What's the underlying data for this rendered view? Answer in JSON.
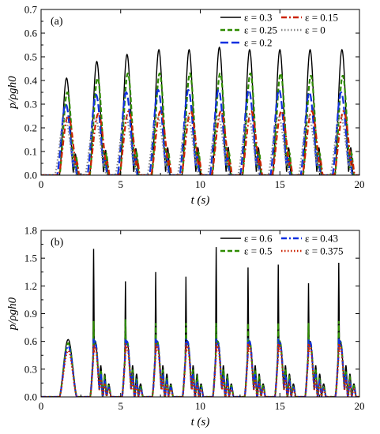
{
  "chart_data": [
    {
      "panel": "(a)",
      "type": "line",
      "xlabel": "t (s)",
      "ylabel": "p/ρgh0",
      "xlim": [
        0,
        20
      ],
      "ylim": [
        0,
        0.7
      ],
      "xticks": [
        0,
        5,
        10,
        15,
        20
      ],
      "yticks": [
        0.0,
        0.1,
        0.2,
        0.3,
        0.4,
        0.5,
        0.6,
        0.7
      ],
      "xtick_labels": [
        "0",
        "5",
        "10",
        "15",
        "20"
      ],
      "ytick_labels": [
        "0.0",
        "0.1",
        "0.2",
        "0.3",
        "0.4",
        "0.5",
        "0.6",
        "0.7"
      ],
      "legend_position": "top-right",
      "legend_columns": 2,
      "peak_times": [
        1.6,
        3.5,
        5.4,
        7.4,
        9.3,
        11.2,
        13.1,
        15.0,
        16.9,
        18.9
      ],
      "series": [
        {
          "name": "ε = 0.3",
          "color": "#000000",
          "dash": "solid",
          "peaks": [
            0.41,
            0.48,
            0.51,
            0.53,
            0.53,
            0.54,
            0.53,
            0.53,
            0.53,
            0.53
          ]
        },
        {
          "name": "ε = 0.25",
          "color": "#2e8b00",
          "dash": "dash",
          "peaks": [
            0.35,
            0.41,
            0.43,
            0.43,
            0.43,
            0.43,
            0.43,
            0.43,
            0.42,
            0.42
          ]
        },
        {
          "name": "ε = 0.2",
          "color": "#1030e0",
          "dash": "longdash",
          "peaks": [
            0.3,
            0.34,
            0.35,
            0.36,
            0.36,
            0.36,
            0.36,
            0.36,
            0.35,
            0.35
          ]
        },
        {
          "name": "ε = 0.15",
          "color": "#cc2200",
          "dash": "dashdot",
          "peaks": [
            0.25,
            0.26,
            0.27,
            0.27,
            0.27,
            0.27,
            0.27,
            0.27,
            0.27,
            0.27
          ]
        },
        {
          "name": "ε = 0",
          "color": "#888888",
          "dash": "dot",
          "peaks": [
            0.24,
            0.24,
            0.25,
            0.25,
            0.25,
            0.25,
            0.25,
            0.25,
            0.25,
            0.25
          ]
        }
      ]
    },
    {
      "panel": "(b)",
      "type": "line",
      "xlabel": "t (s)",
      "ylabel": "p/ρgh0",
      "xlim": [
        0,
        20
      ],
      "ylim": [
        0,
        1.8
      ],
      "xticks": [
        0,
        5,
        10,
        15,
        20
      ],
      "yticks": [
        0.0,
        0.3,
        0.6,
        0.9,
        1.2,
        1.5,
        1.8
      ],
      "xtick_labels": [
        "0",
        "5",
        "10",
        "15",
        "20"
      ],
      "ytick_labels": [
        "0.0",
        "0.3",
        "0.6",
        "0.9",
        "1.2",
        "1.5",
        "1.8"
      ],
      "legend_position": "top-right",
      "legend_columns": 2,
      "first_peak_time": 1.7,
      "spike_times": [
        3.3,
        5.3,
        7.2,
        9.1,
        11.0,
        13.0,
        14.9,
        16.8,
        18.7
      ],
      "series": [
        {
          "name": "ε = 0.6",
          "color": "#000000",
          "dash": "solid",
          "first_peak": 0.62,
          "spikes": [
            1.6,
            1.25,
            1.35,
            1.3,
            1.62,
            1.4,
            1.43,
            1.23,
            1.45
          ]
        },
        {
          "name": "ε = 0.5",
          "color": "#2e8b00",
          "dash": "dash",
          "first_peak": 0.58,
          "spikes": [
            0.82,
            0.84,
            0.8,
            0.8,
            0.8,
            0.8,
            0.8,
            0.8,
            0.82
          ]
        },
        {
          "name": "ε = 0.43",
          "color": "#1030e0",
          "dash": "dashdot",
          "first_peak": 0.55,
          "spikes": [
            0.63,
            0.63,
            0.63,
            0.63,
            0.63,
            0.63,
            0.63,
            0.63,
            0.63
          ]
        },
        {
          "name": "ε = 0.375",
          "color": "#cc2200",
          "dash": "dot",
          "first_peak": 0.5,
          "spikes": [
            0.57,
            0.58,
            0.58,
            0.58,
            0.58,
            0.58,
            0.58,
            0.58,
            0.58
          ]
        }
      ]
    }
  ]
}
